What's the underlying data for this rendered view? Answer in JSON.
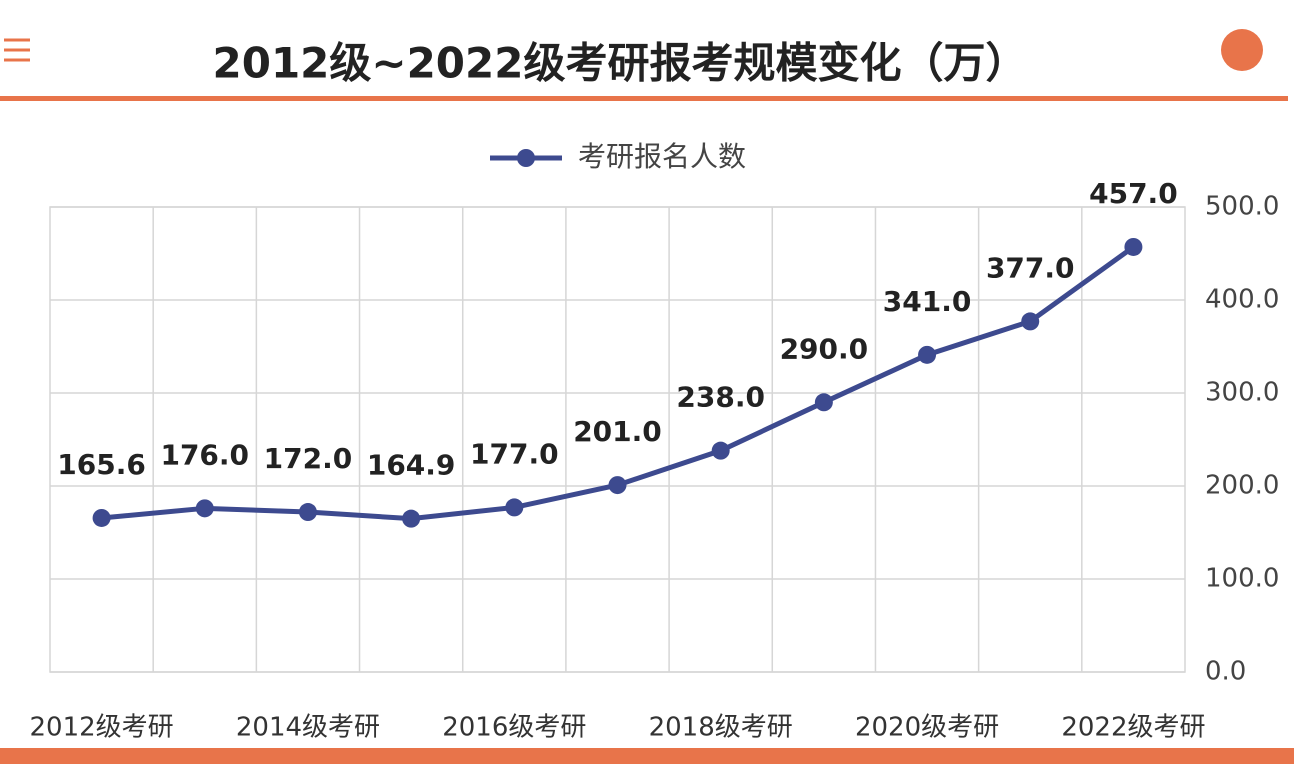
{
  "chart_data": {
    "type": "line",
    "title": "2012级~2022级考研报考规模变化（万）",
    "categories": [
      "2012级考研",
      null,
      "2014级考研",
      null,
      "2016级考研",
      null,
      "2018级考研",
      null,
      "2020级考研",
      null,
      "2022级考研"
    ],
    "series": [
      {
        "name": "考研报名人数",
        "color": "#3d4a8f",
        "values": [
          165.6,
          176,
          172,
          164.9,
          177,
          201,
          238,
          290,
          341,
          377,
          457
        ],
        "value_labels": [
          "165.6",
          "176.0",
          "172.0",
          "164.9",
          "177.0",
          "201.0",
          "238.0",
          "290.0",
          "341.0",
          "377.0",
          "457.0"
        ]
      }
    ],
    "ylim": [
      0,
      500
    ],
    "yticks": [
      {
        "value": 0,
        "label": "0.0"
      },
      {
        "value": 100,
        "label": "100.0"
      },
      {
        "value": 200,
        "label": "200.0"
      },
      {
        "value": 300,
        "label": "300.0"
      },
      {
        "value": 400,
        "label": "400.0"
      },
      {
        "value": 500,
        "label": "500.0"
      }
    ],
    "y_axis_side": "right",
    "grid": true,
    "legend": "top"
  }
}
